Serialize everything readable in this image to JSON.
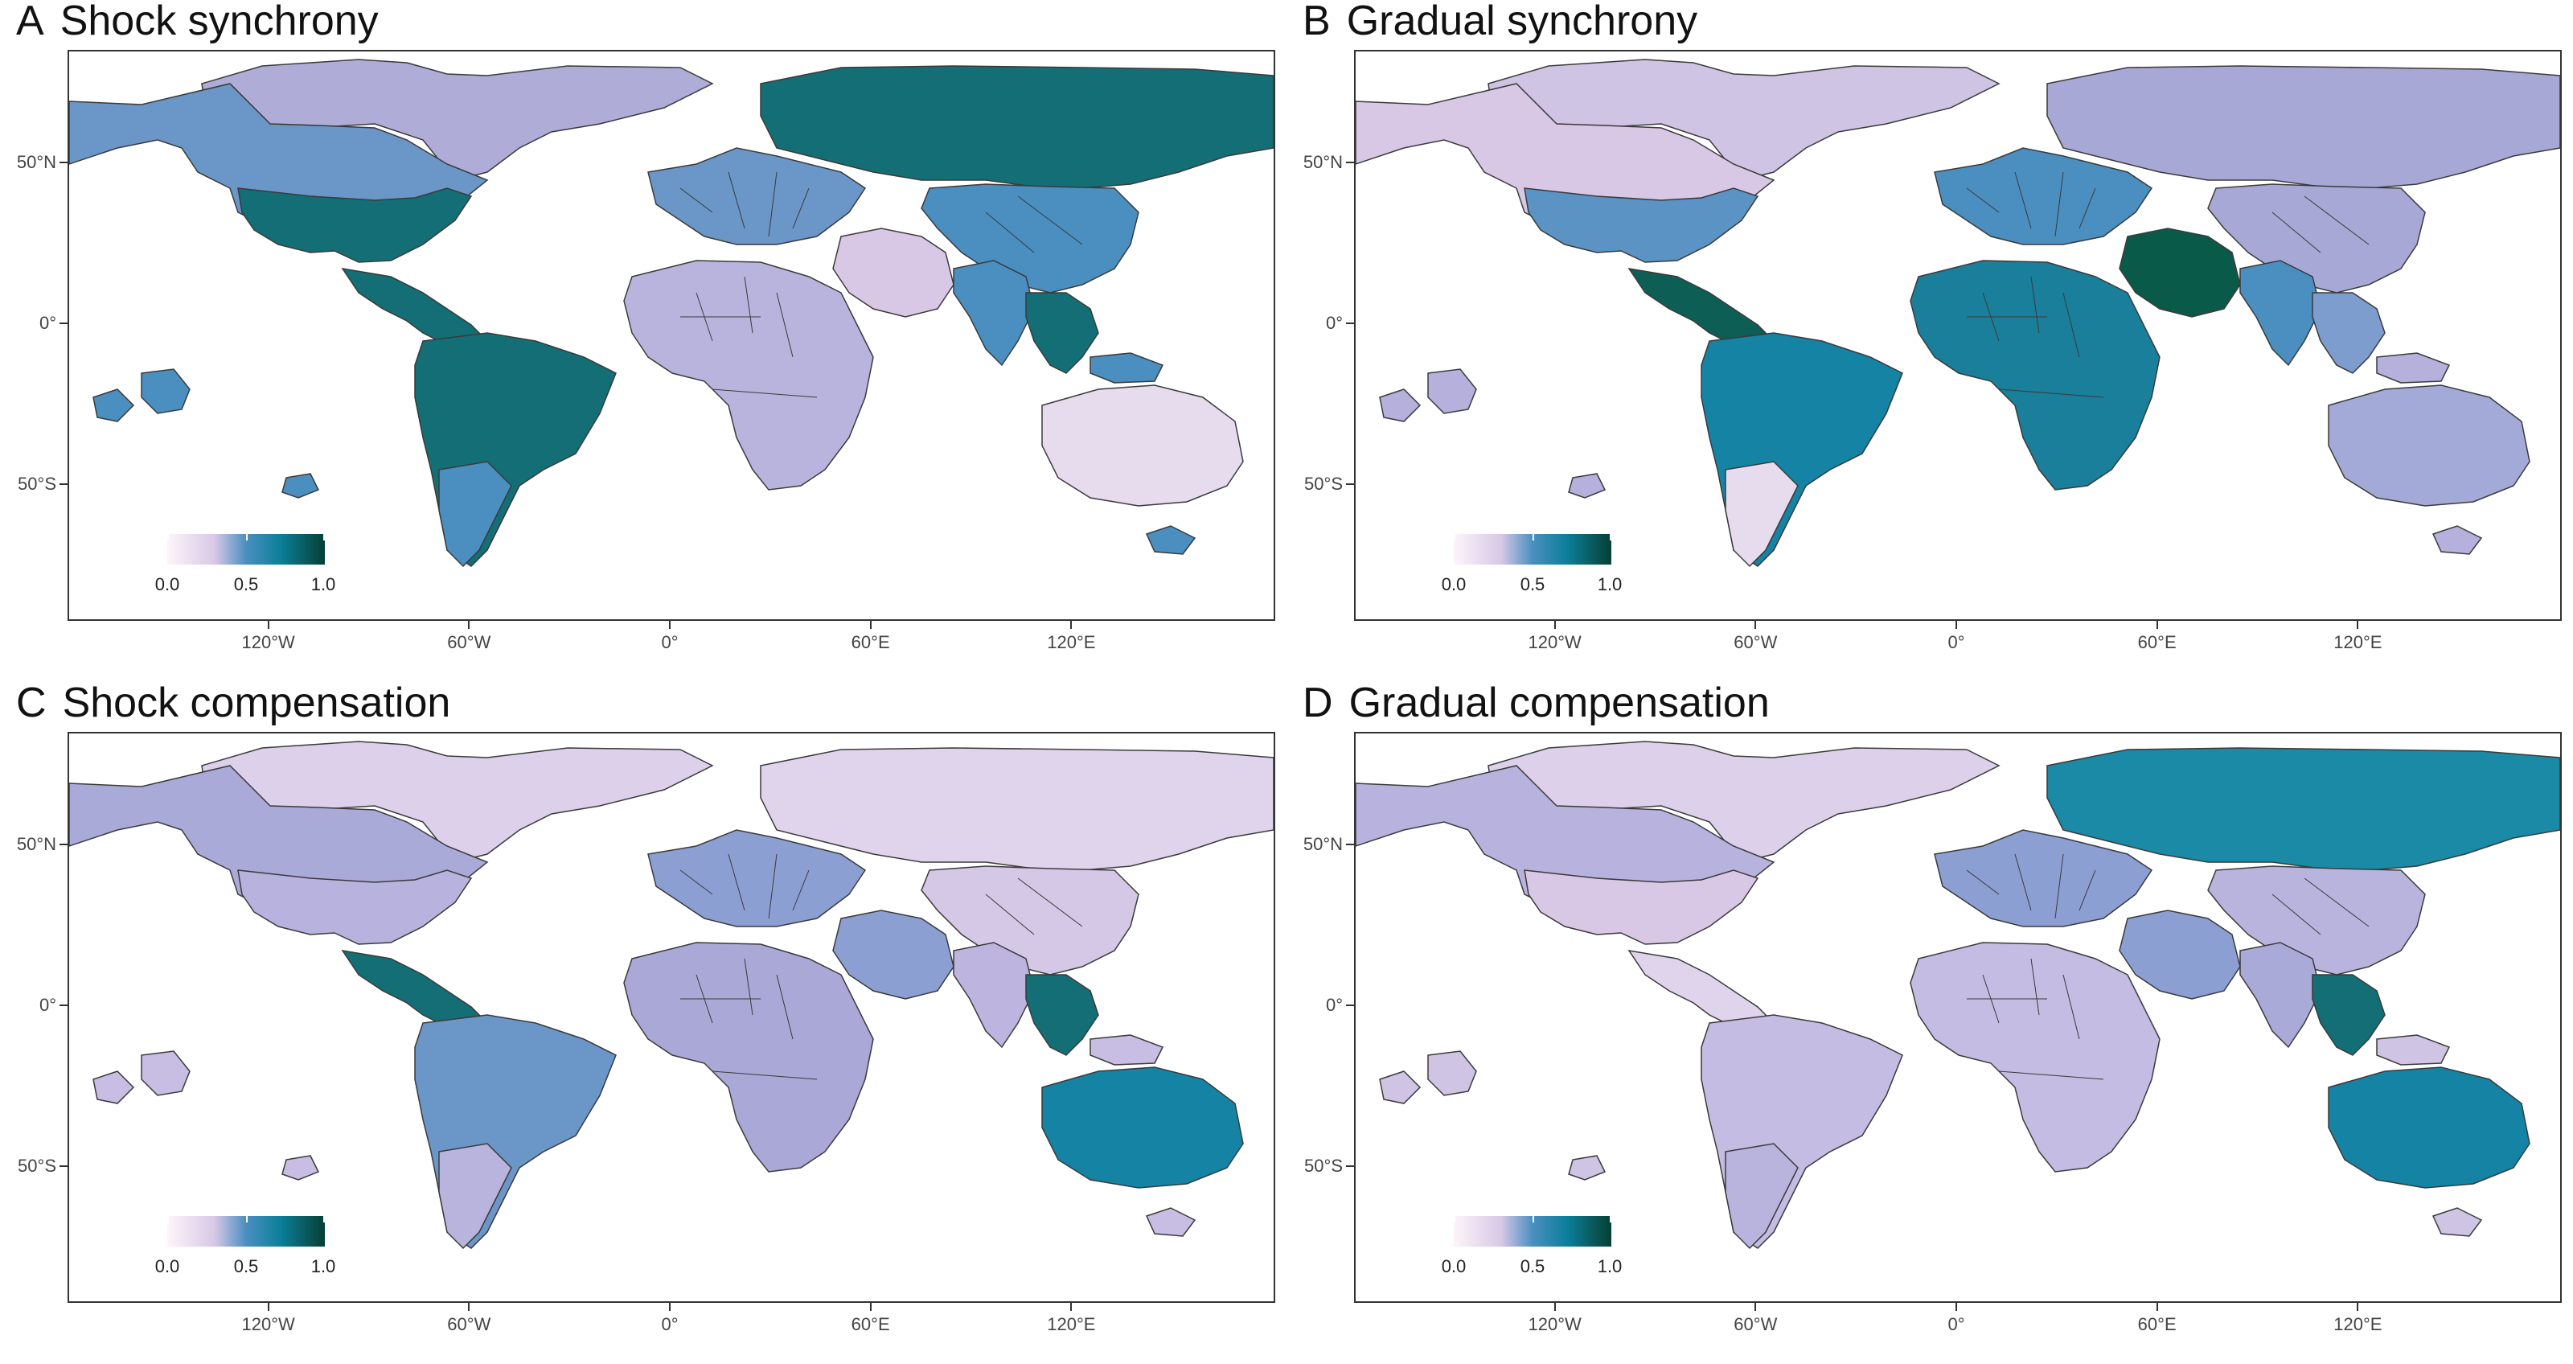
{
  "panels": [
    {
      "id": "A",
      "letter": "A",
      "title": "Shock synchrony",
      "colors": {
        "north_america": "#6a96c8",
        "usa": "#136f75",
        "greenland": "#b0acd8",
        "russia": "#136f75",
        "china": "#4a8fc0",
        "europe": "#6a96c8",
        "africa": "#b9b4de",
        "middle_east": "#d8c8e6",
        "india": "#4a8fc0",
        "southeast_asia": "#136f75",
        "south_america": "#136f75",
        "argentina": "#4a8fc0",
        "australia": "#e6dcee",
        "central_america": "#136f75",
        "islands": "#4a8fc0"
      },
      "legend": {
        "min": "0.0",
        "mid": "0.5",
        "max": "1.0"
      }
    },
    {
      "id": "B",
      "letter": "B",
      "title": "Gradual synchrony",
      "colors": {
        "north_america": "#d8c8e6",
        "usa": "#5a93c4",
        "greenland": "#d0c4e4",
        "russia": "#a8a8d6",
        "china": "#a8a8d6",
        "europe": "#4a8fc0",
        "africa": "#1a7f9a",
        "middle_east": "#0a5a4a",
        "india": "#4a8fc0",
        "southeast_asia": "#7d9dcf",
        "south_america": "#1583a4",
        "argentina": "#e6dcee",
        "australia": "#a3aad8",
        "central_america": "#0d5e55",
        "islands": "#b5b0dc"
      },
      "legend": {
        "min": "0.0",
        "mid": "0.5",
        "max": "1.0"
      }
    },
    {
      "id": "C",
      "letter": "C",
      "title": "Shock compensation",
      "colors": {
        "north_america": "#a9aad8",
        "usa": "#b8b3de",
        "greenland": "#ddd0ea",
        "russia": "#e0d4ec",
        "china": "#d5c8e6",
        "europe": "#8b9fd3",
        "africa": "#aaa8d7",
        "middle_east": "#8b9fd3",
        "india": "#bdb5df",
        "southeast_asia": "#136f75",
        "south_america": "#6a96c8",
        "argentina": "#b9b4de",
        "australia": "#1583a4",
        "central_america": "#136f75",
        "islands": "#c8bde2"
      },
      "legend": {
        "min": "0.0",
        "mid": "0.5",
        "max": "1.0"
      }
    },
    {
      "id": "D",
      "letter": "D",
      "title": "Gradual compensation",
      "colors": {
        "north_america": "#b8b3de",
        "usa": "#d8c8e6",
        "greenland": "#ddd0ea",
        "russia": "#1a8aa6",
        "china": "#b9b4de",
        "europe": "#8b9fd3",
        "africa": "#c4bce2",
        "middle_east": "#8b9fd3",
        "india": "#a9aad8",
        "southeast_asia": "#136f75",
        "south_america": "#c4bce2",
        "argentina": "#b9b4de",
        "australia": "#1583a4",
        "central_america": "#e0d4ec",
        "islands": "#d0c4e4"
      },
      "legend": {
        "min": "0.0",
        "mid": "0.5",
        "max": "1.0"
      }
    }
  ],
  "axes": {
    "x_ticks": [
      "120°W",
      "60°W",
      "0°",
      "60°E",
      "120°E"
    ],
    "y_ticks": [
      "50°N",
      "0°",
      "50°S"
    ]
  }
}
